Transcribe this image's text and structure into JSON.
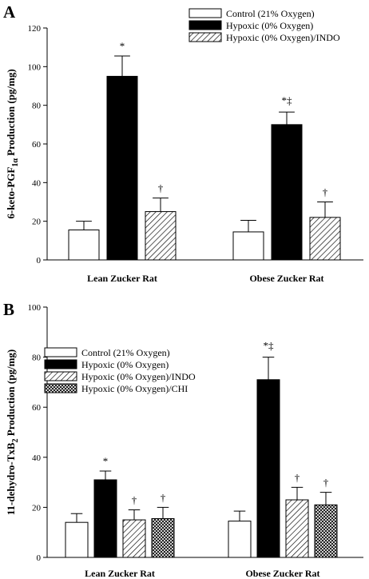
{
  "chart_data": [
    {
      "type": "bar",
      "panel_label": "A",
      "ylabel_main": "6-keto-PGF",
      "ylabel_sub": "1α",
      "ylabel_tail": " Production (pg/mg)",
      "categories": [
        "Lean Zucker Rat",
        "Obese Zucker Rat"
      ],
      "ylim": [
        0,
        120
      ],
      "yticks": [
        0,
        20,
        40,
        60,
        80,
        100,
        120
      ],
      "legend_position": "top-right",
      "series": [
        {
          "name": "Control (21% Oxygen)",
          "pattern": "open",
          "values": [
            15.5,
            14.5
          ],
          "errors": [
            4.5,
            6.0
          ],
          "sig": [
            "",
            ""
          ]
        },
        {
          "name": "Hypoxic (0% Oxygen)",
          "pattern": "solid",
          "values": [
            95,
            70
          ],
          "errors": [
            10.5,
            6.5
          ],
          "sig": [
            "*",
            "*‡"
          ]
        },
        {
          "name": "Hypoxic (0% Oxygen)/INDO",
          "pattern": "hatch",
          "values": [
            25,
            22
          ],
          "errors": [
            7,
            8
          ],
          "sig": [
            "†",
            "†"
          ]
        }
      ]
    },
    {
      "type": "bar",
      "panel_label": "B",
      "ylabel_main": "11-dehydro-TxB",
      "ylabel_sub": "2",
      "ylabel_tail": " Production (pg/mg)",
      "categories": [
        "Lean Zucker Rat",
        "Obese Zucker Rat"
      ],
      "ylim": [
        0,
        100
      ],
      "yticks": [
        0,
        20,
        40,
        60,
        80,
        100
      ],
      "legend_position": "top-left",
      "series": [
        {
          "name": "Control (21% Oxygen)",
          "pattern": "open",
          "values": [
            14,
            14.5
          ],
          "errors": [
            3.5,
            4
          ],
          "sig": [
            "",
            ""
          ]
        },
        {
          "name": "Hypoxic (0% Oxygen)",
          "pattern": "solid",
          "values": [
            31,
            71
          ],
          "errors": [
            3.5,
            9
          ],
          "sig": [
            "*",
            "*‡"
          ]
        },
        {
          "name": "Hypoxic (0% Oxygen)/INDO",
          "pattern": "hatch",
          "values": [
            15,
            23
          ],
          "errors": [
            4,
            5
          ],
          "sig": [
            "†",
            "†"
          ]
        },
        {
          "name": "Hypoxic (0% Oxygen)/CHI",
          "pattern": "cross",
          "values": [
            15.5,
            21
          ],
          "errors": [
            4.5,
            5
          ],
          "sig": [
            "†",
            "†"
          ]
        }
      ]
    }
  ]
}
